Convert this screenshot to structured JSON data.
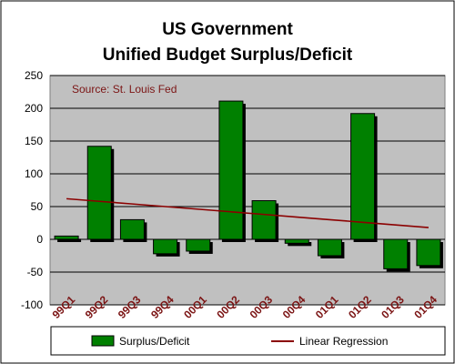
{
  "chart_data": {
    "type": "bar",
    "title_line1": "US Government",
    "title_line2": "Unified Budget Surplus/Deficit",
    "annotation": "Source: St. Louis Fed",
    "categories": [
      "99Q1",
      "99Q2",
      "99Q3",
      "99Q4",
      "00Q1",
      "00Q2",
      "00Q3",
      "00Q4",
      "01Q1",
      "01Q2",
      "01Q3",
      "01Q4"
    ],
    "y_ticks": [
      "250",
      "200",
      "150",
      "100",
      "50",
      "0",
      "-50",
      "-100"
    ],
    "ylim": [
      -100,
      250
    ],
    "grid": true,
    "legend_position": "bottom",
    "series": [
      {
        "name": "Surplus/Deficit",
        "type": "bar",
        "values": [
          5,
          142,
          30,
          -22,
          -18,
          211,
          59,
          -6,
          -25,
          192,
          -45,
          -40
        ]
      },
      {
        "name": "Linear Regression",
        "type": "line",
        "values": [
          62,
          58,
          54,
          50,
          46,
          42,
          38,
          34,
          30,
          26,
          22,
          18
        ]
      }
    ],
    "colors": {
      "bar_fill": "#008000",
      "bar_shadow": "#000000",
      "regression_line": "#8b0000",
      "plot_background": "#c0c0c0",
      "gridline": "#000000",
      "annotation": "#7b1414",
      "tick_x_label": "#7b1414"
    }
  }
}
